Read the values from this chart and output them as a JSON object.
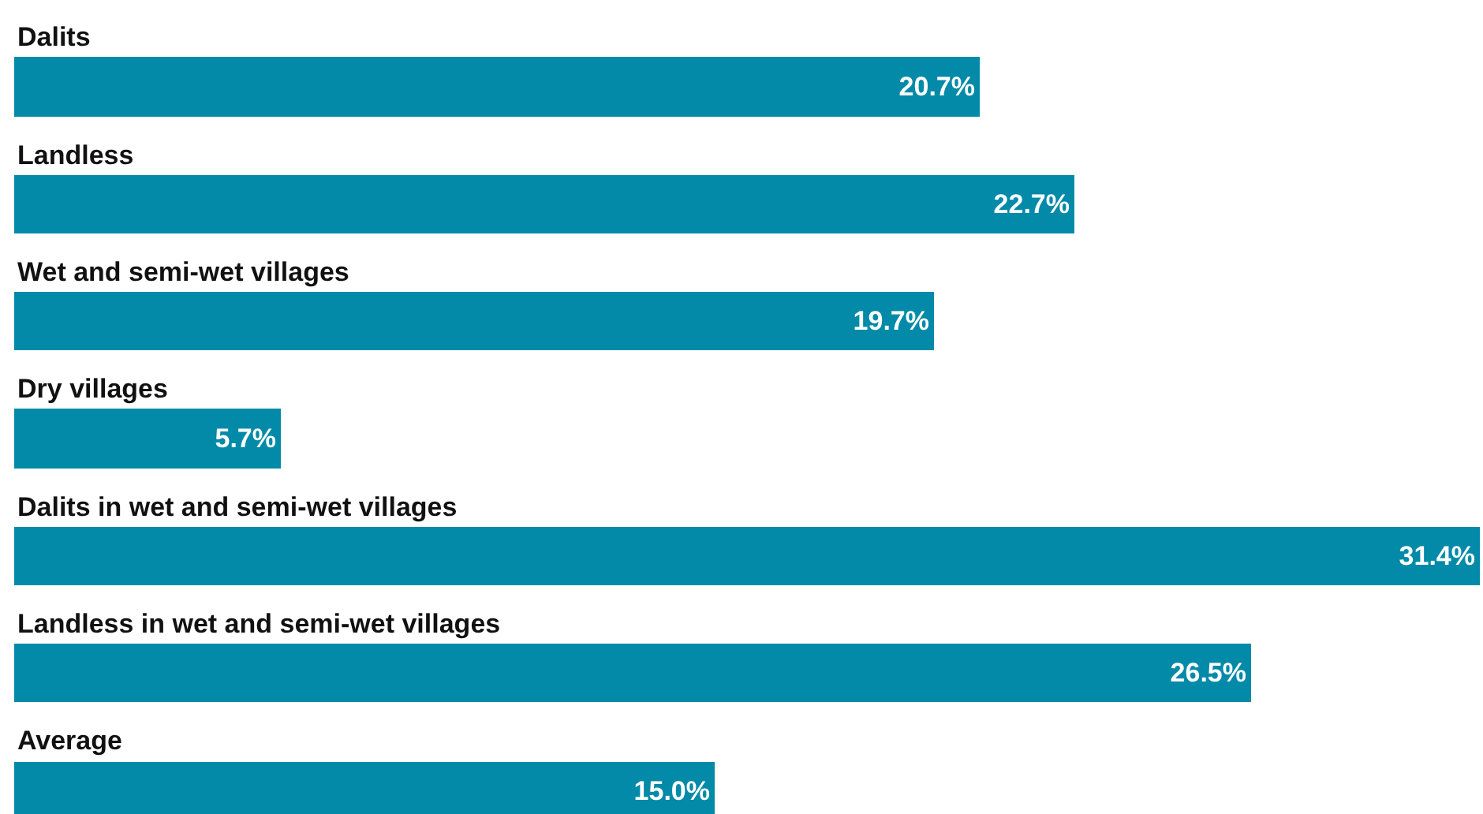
{
  "chart_data": {
    "type": "bar",
    "orientation": "horizontal",
    "categories": [
      "Dalits",
      "Landless",
      "Wet and semi-wet villages",
      "Dry villages",
      "Dalits in wet and semi-wet villages",
      "Landless in wet and semi-wet villages",
      "Average"
    ],
    "values": [
      20.7,
      22.7,
      19.7,
      5.7,
      31.4,
      26.5,
      15.0
    ],
    "value_labels": [
      "20.7%",
      "22.7%",
      "19.7%",
      "5.7%",
      "31.4%",
      "26.5%",
      "15.0%"
    ],
    "color": "#028aa8",
    "xlim": [
      0,
      31.4
    ],
    "tick_labels": false
  }
}
